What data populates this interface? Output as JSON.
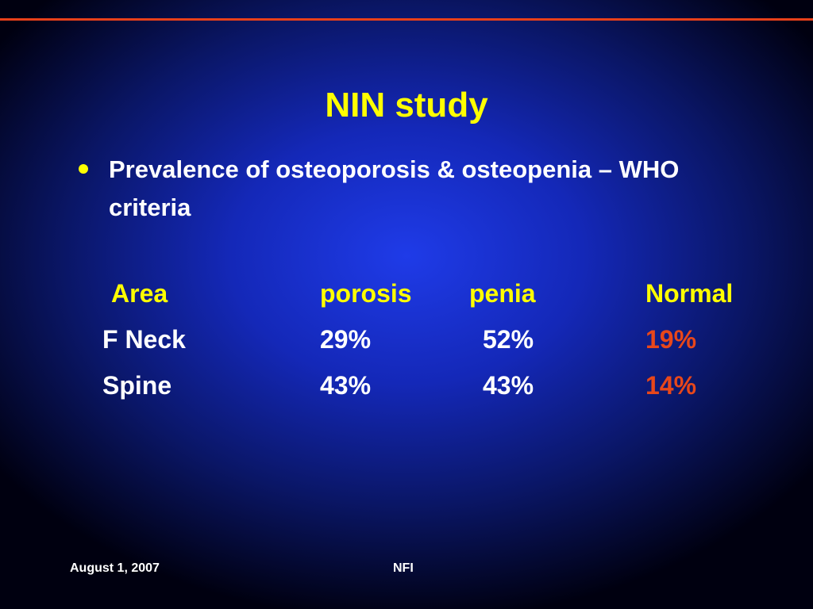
{
  "title": "NIN study",
  "bullet": {
    "text": "Prevalence of osteoporosis & osteopenia – WHO criteria"
  },
  "table": {
    "header": [
      "Area",
      "porosis",
      "penia",
      "Normal"
    ],
    "rows": [
      [
        "F Neck",
        "29%",
        "52%",
        "19%"
      ],
      [
        "Spine",
        "43%",
        "43%",
        "14%"
      ]
    ]
  },
  "footer": {
    "date": "August 1, 2007",
    "org": "NFI"
  }
}
